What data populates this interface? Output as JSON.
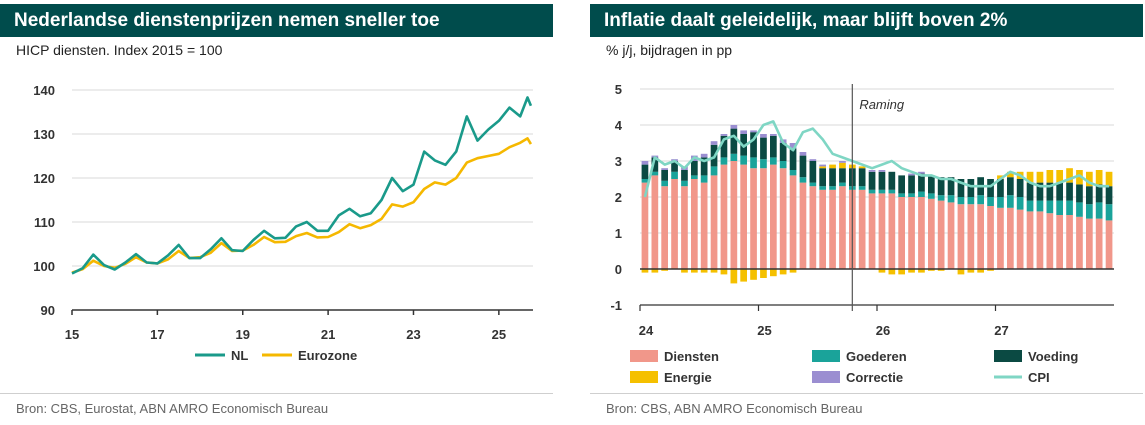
{
  "chart_data": [
    {
      "type": "line",
      "title": "Nederlandse dienstenprijzen nemen sneller toe",
      "subtitle": "HICP diensten. Index 2015 = 100",
      "source": "Bron: CBS, Eurostat, ABN AMRO Economisch Bureau",
      "xlabel": "",
      "ylabel": "",
      "xlim": [
        2015,
        2025.8
      ],
      "ylim": [
        90,
        140
      ],
      "x_ticks": [
        "15",
        "17",
        "19",
        "21",
        "23",
        "25"
      ],
      "y_ticks": [
        "90",
        "100",
        "110",
        "120",
        "130",
        "140"
      ],
      "series": [
        {
          "name": "NL",
          "color": "#1a9a8a",
          "x": [
            2015.0,
            2015.25,
            2015.5,
            2015.75,
            2016.0,
            2016.25,
            2016.5,
            2016.75,
            2017.0,
            2017.25,
            2017.5,
            2017.75,
            2018.0,
            2018.25,
            2018.5,
            2018.75,
            2019.0,
            2019.25,
            2019.5,
            2019.75,
            2020.0,
            2020.25,
            2020.5,
            2020.75,
            2021.0,
            2021.25,
            2021.5,
            2021.75,
            2022.0,
            2022.25,
            2022.5,
            2022.75,
            2023.0,
            2023.25,
            2023.5,
            2023.75,
            2024.0,
            2024.25,
            2024.5,
            2024.75,
            2025.0,
            2025.25,
            2025.5,
            2025.67,
            2025.75
          ],
          "values": [
            98.3,
            99.5,
            102.6,
            100.2,
            99.2,
            100.8,
            102.7,
            100.8,
            100.6,
            102.4,
            104.8,
            101.8,
            101.8,
            103.8,
            106.3,
            103.6,
            103.4,
            105.9,
            108.0,
            106.3,
            106.4,
            109.0,
            110.0,
            108.0,
            108.0,
            111.5,
            113.0,
            111.3,
            112.0,
            115.0,
            120.0,
            117.0,
            118.5,
            126.0,
            124.0,
            123.0,
            126.0,
            134.0,
            128.5,
            131.0,
            133.0,
            136.0,
            134.0,
            138.3,
            136.4
          ]
        },
        {
          "name": "Eurozone",
          "color": "#f5b800",
          "x": [
            2015.0,
            2015.25,
            2015.5,
            2015.75,
            2016.0,
            2016.25,
            2016.5,
            2016.75,
            2017.0,
            2017.25,
            2017.5,
            2017.75,
            2018.0,
            2018.25,
            2018.5,
            2018.75,
            2019.0,
            2019.25,
            2019.5,
            2019.75,
            2020.0,
            2020.25,
            2020.5,
            2020.75,
            2021.0,
            2021.25,
            2021.5,
            2021.75,
            2022.0,
            2022.25,
            2022.5,
            2022.75,
            2023.0,
            2023.25,
            2023.5,
            2023.75,
            2024.0,
            2024.25,
            2024.5,
            2024.75,
            2025.0,
            2025.25,
            2025.5,
            2025.67,
            2025.75
          ],
          "values": [
            98.5,
            99.3,
            101.2,
            100.0,
            99.6,
            100.5,
            102.0,
            100.8,
            100.6,
            101.5,
            103.4,
            101.8,
            102.0,
            103.0,
            105.2,
            103.4,
            103.5,
            104.8,
            106.6,
            105.4,
            105.5,
            106.8,
            107.5,
            106.5,
            106.6,
            107.7,
            109.5,
            108.6,
            109.3,
            110.7,
            114.0,
            113.5,
            114.5,
            117.5,
            119.0,
            118.5,
            120.0,
            123.5,
            124.5,
            125.0,
            125.5,
            127.0,
            128.0,
            129.0,
            127.7
          ]
        }
      ],
      "legend": [
        "NL",
        "Eurozone"
      ]
    },
    {
      "type": "bar",
      "stacked": true,
      "title": "Inflatie daalt geleidelijk, maar blijft boven 2%",
      "subtitle": "% j/j, bijdragen in pp",
      "source": "Bron: CBS, ABN AMRO Economisch Bureau",
      "xlabel": "",
      "ylabel": "",
      "ylim": [
        -1,
        5
      ],
      "y_ticks": [
        "-1",
        "0",
        "1",
        "2",
        "3",
        "4",
        "5"
      ],
      "x_ticks": [
        "24",
        "25",
        "26",
        "27"
      ],
      "annotation": "Raming",
      "annotation_month_index": 21.5,
      "months": 48,
      "series": [
        {
          "name": "Diensten",
          "color": "#f1978a",
          "values": [
            2.4,
            2.6,
            2.3,
            2.5,
            2.3,
            2.5,
            2.4,
            2.6,
            2.9,
            3.0,
            2.9,
            2.8,
            2.8,
            2.9,
            2.8,
            2.6,
            2.4,
            2.3,
            2.2,
            2.2,
            2.3,
            2.2,
            2.2,
            2.1,
            2.1,
            2.1,
            2.0,
            2.0,
            2.0,
            1.95,
            1.9,
            1.85,
            1.8,
            1.8,
            1.8,
            1.75,
            1.7,
            1.7,
            1.65,
            1.6,
            1.6,
            1.55,
            1.5,
            1.5,
            1.45,
            1.4,
            1.4,
            1.35
          ]
        },
        {
          "name": "Goederen",
          "color": "#1aa39a",
          "values": [
            0.1,
            0.1,
            0.15,
            0.2,
            0.15,
            0.1,
            0.2,
            0.25,
            0.2,
            0.2,
            0.25,
            0.3,
            0.25,
            0.2,
            0.2,
            0.15,
            0.15,
            0.1,
            0.1,
            0.1,
            0.1,
            0.1,
            0.1,
            0.1,
            0.1,
            0.1,
            0.1,
            0.1,
            0.15,
            0.15,
            0.15,
            0.2,
            0.2,
            0.2,
            0.25,
            0.25,
            0.3,
            0.35,
            0.35,
            0.3,
            0.3,
            0.35,
            0.4,
            0.4,
            0.4,
            0.4,
            0.45,
            0.45
          ]
        },
        {
          "name": "Voeding",
          "color": "#0b4a43",
          "values": [
            0.4,
            0.4,
            0.3,
            0.3,
            0.3,
            0.4,
            0.5,
            0.6,
            0.6,
            0.7,
            0.6,
            0.7,
            0.6,
            0.6,
            0.5,
            0.6,
            0.6,
            0.6,
            0.5,
            0.5,
            0.4,
            0.5,
            0.5,
            0.5,
            0.5,
            0.5,
            0.5,
            0.5,
            0.5,
            0.5,
            0.5,
            0.5,
            0.5,
            0.5,
            0.5,
            0.5,
            0.5,
            0.5,
            0.5,
            0.5,
            0.5,
            0.5,
            0.5,
            0.5,
            0.5,
            0.5,
            0.5,
            0.5
          ]
        },
        {
          "name": "Energie",
          "color": "#f5c000",
          "values": [
            -0.1,
            -0.1,
            -0.05,
            0.0,
            -0.1,
            -0.1,
            -0.1,
            -0.1,
            -0.15,
            -0.4,
            -0.35,
            -0.3,
            -0.25,
            -0.2,
            -0.15,
            -0.1,
            0.0,
            0.0,
            0.05,
            0.1,
            0.15,
            0.1,
            0.05,
            0.0,
            -0.1,
            -0.15,
            -0.15,
            -0.1,
            -0.1,
            -0.05,
            -0.05,
            0.0,
            -0.15,
            -0.1,
            -0.1,
            -0.05,
            0.1,
            0.15,
            0.2,
            0.3,
            0.3,
            0.35,
            0.35,
            0.4,
            0.4,
            0.4,
            0.4,
            0.4
          ]
        },
        {
          "name": "Correctie",
          "color": "#9b8ed1",
          "values": [
            0.1,
            0.05,
            0.05,
            0.05,
            0.1,
            0.15,
            0.1,
            0.1,
            0.05,
            0.1,
            0.1,
            0.05,
            0.1,
            0.05,
            0.1,
            0.15,
            0.1,
            0.05,
            0.05,
            0.0,
            0.05,
            0.0,
            0.0,
            0.05,
            0.05,
            0.0,
            0.0,
            0.05,
            0.05,
            0.0,
            0.0,
            0.0,
            0.0,
            0.0,
            0.0,
            0.0,
            0.0,
            0.0,
            0.0,
            0.0,
            0.0,
            0.0,
            0.0,
            0.0,
            0.0,
            0.0,
            0.0,
            0.0
          ]
        },
        {
          "name": "CPI",
          "type": "line",
          "color": "#7fd6c4",
          "values": [
            2.0,
            3.1,
            2.9,
            3.0,
            2.8,
            3.1,
            3.0,
            3.1,
            3.6,
            3.7,
            3.4,
            3.6,
            4.0,
            4.1,
            3.5,
            3.3,
            3.8,
            3.9,
            3.6,
            3.2,
            3.1,
            3.0,
            2.9,
            2.8,
            2.9,
            3.0,
            2.8,
            2.7,
            2.6,
            2.6,
            2.5,
            2.5,
            2.4,
            2.3,
            2.3,
            2.3,
            2.5,
            2.7,
            2.6,
            2.4,
            2.3,
            2.3,
            2.4,
            2.5,
            2.6,
            2.4,
            2.3,
            2.3
          ]
        }
      ],
      "legend": [
        "Diensten",
        "Goederen",
        "Voeding",
        "Energie",
        "Correctie",
        "CPI"
      ]
    }
  ]
}
